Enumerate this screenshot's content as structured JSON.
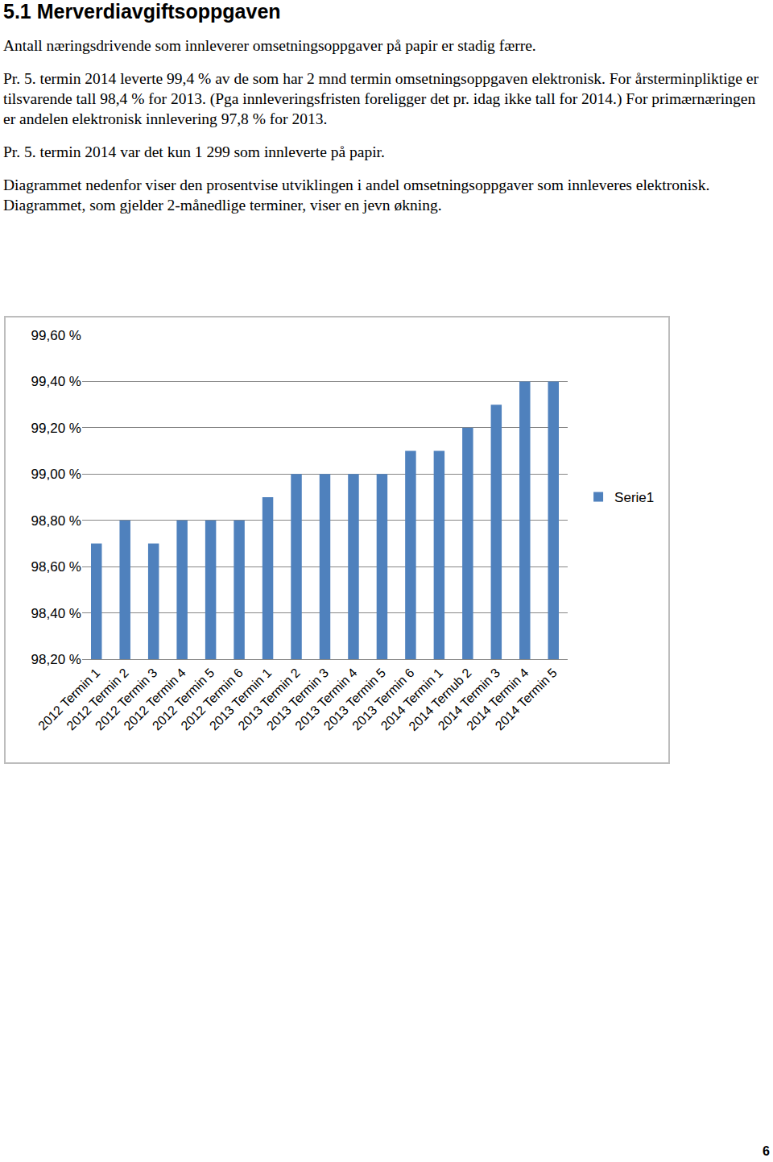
{
  "heading": "5.1 Merverdiavgiftsoppgaven",
  "paragraphs": [
    "Antall næringsdrivende som innleverer omsetningsoppgaver på papir er stadig færre.",
    "Pr. 5. termin 2014 leverte 99,4 % av de som har 2 mnd termin omsetningsoppgaven elektronisk. For årsterminpliktige er tilsvarende tall 98,4 % for 2013. (Pga innleveringsfristen foreligger det pr. idag ikke tall for 2014.) For primærnæringen er andelen elektronisk innlevering 97,8 % for 2013.",
    "Pr. 5. termin 2014 var det kun 1 299 som innleverte på papir.",
    "Diagrammet nedenfor viser den prosentvise utviklingen i andel omsetningsoppgaver som innleveres elektronisk. Diagrammet, som gjelder 2-månedlige terminer, viser en jevn økning."
  ],
  "page_number": "6",
  "chart_data": {
    "type": "bar",
    "categories": [
      "2012 Termin 1",
      "2012 Termin 2",
      "2012 Termin 3",
      "2012 Termin 4",
      "2012 Termin 5",
      "2012 Termin 6",
      "2013 Termin 1",
      "2013 Termin 2",
      "2013 Termin 3",
      "2013 Termin 4",
      "2013 Termin 5",
      "2013 Termin 6",
      "2014 Termin 1",
      "2014 Ternub 2",
      "2014 Termin 3",
      "2014 Termin 4",
      "2014 Termin 5"
    ],
    "series": [
      {
        "name": "Serie1",
        "color": "#4f81bd",
        "values": [
          98.7,
          98.8,
          98.7,
          98.8,
          98.8,
          98.8,
          98.9,
          99.0,
          99.0,
          99.0,
          99.0,
          99.1,
          99.1,
          99.2,
          99.3,
          99.4,
          99.4
        ]
      }
    ],
    "ylim": [
      98.2,
      99.6
    ],
    "yticks": [
      {
        "value": 98.2,
        "label": "98,20 %"
      },
      {
        "value": 98.4,
        "label": "98,40 %"
      },
      {
        "value": 98.6,
        "label": "98,60 %"
      },
      {
        "value": 98.8,
        "label": "98,80 %"
      },
      {
        "value": 99.0,
        "label": "99,00 %"
      },
      {
        "value": 99.2,
        "label": "99,20 %"
      },
      {
        "value": 99.4,
        "label": "99,40 %"
      },
      {
        "value": 99.6,
        "label": "99,60 %"
      }
    ],
    "grid": true,
    "legend": "right"
  }
}
